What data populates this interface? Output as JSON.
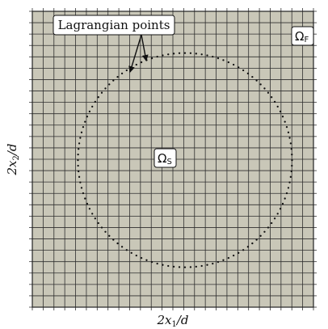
{
  "figure": {
    "callout_label": "Lagrangian points",
    "fluid_region_label": "ΩF",
    "solid_region_label": "ΩS",
    "xlabel": "2x1/d",
    "ylabel": "2x2/d"
  },
  "style": {
    "background_color": "#c9c7b8",
    "grid_color": "#2e2e2e",
    "point_color": "#111111",
    "box_fill": "#ffffff",
    "box_stroke": "#111111"
  },
  "mesh": {
    "cells_x": 26,
    "cells_y": 26,
    "frame_ticks_per_cell": 1
  },
  "immersed_boundary": {
    "point_count": 120,
    "radius_in_cells": 9.9
  }
}
